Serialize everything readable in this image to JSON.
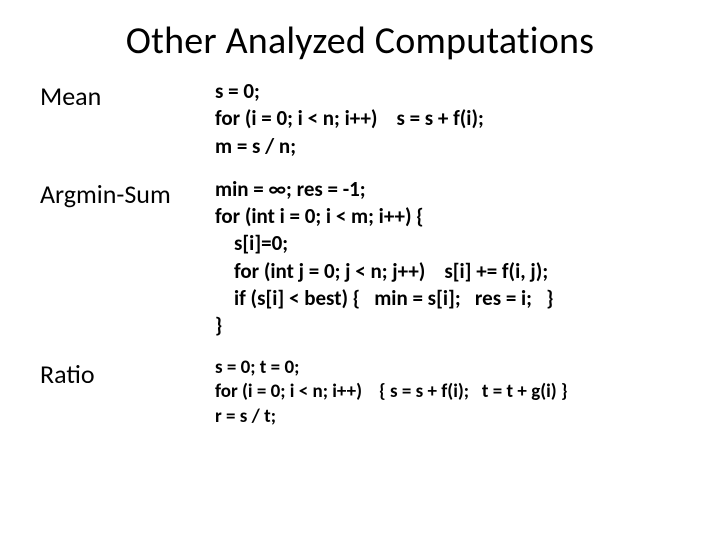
{
  "title": "Other Analyzed Computations",
  "rows": [
    {
      "label": "Mean",
      "code": "s = 0;\nfor (i = 0; i < n; i++)    s = s + f(i);\nm = s / n;"
    },
    {
      "label": "Argmin-Sum",
      "code": "min = ∞; res = -1;\nfor (int i = 0; i < m; i++) {\n    s[i]=0;\n    for (int j = 0; j < n; j++)    s[i] += f(i, j);\n    if (s[i] < best) {   min = s[i];   res = i;   }\n}"
    },
    {
      "label": "Ratio",
      "code": "s = 0; t = 0;\nfor (i = 0; i < n; i++)    { s = s + f(i);   t = t + g(i) }\nr = s / t;"
    }
  ],
  "styling": {
    "background_color": "#ffffff",
    "text_color": "#000000",
    "title_fontsize": 38,
    "label_fontsize": 26,
    "code_fontsize": 21,
    "code_fontsize_small": 19,
    "font_family": "Calibri",
    "code_fontweight": 700,
    "label_column_width": 175
  }
}
